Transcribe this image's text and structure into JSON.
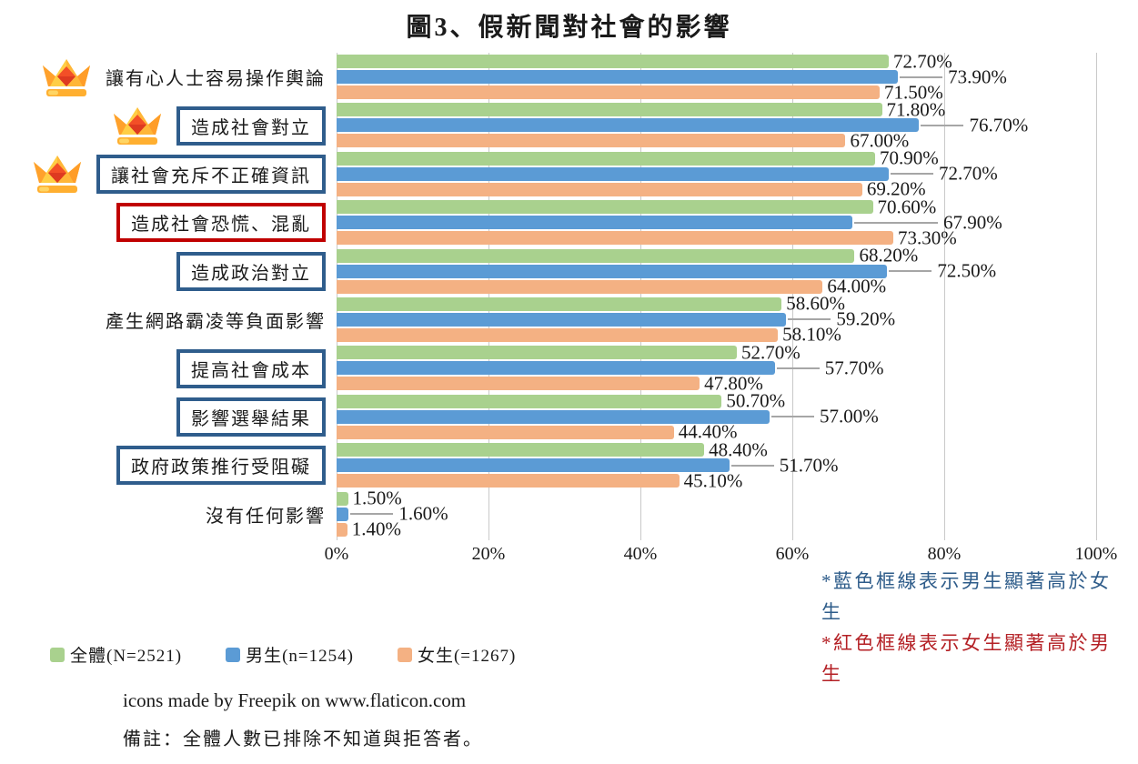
{
  "title": "圖3、假新聞對社會的影響",
  "chart_data": {
    "type": "bar",
    "orientation": "horizontal",
    "title": "圖3、假新聞對社會的影響",
    "xlim": [
      0,
      100
    ],
    "x_ticks": [
      "0%",
      "20%",
      "40%",
      "60%",
      "80%",
      "100%"
    ],
    "grid": true,
    "legend_position": "bottom-left",
    "categories": [
      {
        "label": "讓有心人士容易操作輿論",
        "crown": true,
        "box": "none"
      },
      {
        "label": "造成社會對立",
        "crown": true,
        "box": "blue"
      },
      {
        "label": "讓社會充斥不正確資訊",
        "crown": true,
        "box": "blue"
      },
      {
        "label": "造成社會恐慌、混亂",
        "crown": false,
        "box": "red"
      },
      {
        "label": "造成政治對立",
        "crown": false,
        "box": "blue"
      },
      {
        "label": "產生網路霸凌等負面影響",
        "crown": false,
        "box": "none"
      },
      {
        "label": "提高社會成本",
        "crown": false,
        "box": "blue"
      },
      {
        "label": "影響選舉結果",
        "crown": false,
        "box": "blue"
      },
      {
        "label": "政府政策推行受阻礙",
        "crown": false,
        "box": "blue"
      },
      {
        "label": "沒有任何影響",
        "crown": false,
        "box": "none"
      }
    ],
    "series": [
      {
        "name": "全體(N=2521)",
        "color": "#A9D18E",
        "values": [
          72.7,
          71.8,
          70.9,
          70.6,
          68.2,
          58.6,
          52.7,
          50.7,
          48.4,
          1.5
        ],
        "labels": [
          "72.70%",
          "71.80%",
          "70.90%",
          "70.60%",
          "68.20%",
          "58.60%",
          "52.70%",
          "50.70%",
          "48.40%",
          "1.50%"
        ]
      },
      {
        "name": "男生(n=1254)",
        "color": "#5B9BD5",
        "values": [
          73.9,
          76.7,
          72.7,
          67.9,
          72.5,
          59.2,
          57.7,
          57.0,
          51.7,
          1.6
        ],
        "labels": [
          "73.90%",
          "76.70%",
          "72.70%",
          "67.90%",
          "72.50%",
          "59.20%",
          "57.70%",
          "57.00%",
          "51.70%",
          "1.60%"
        ]
      },
      {
        "name": "女生(=1267)",
        "color": "#F4B183",
        "values": [
          71.5,
          67.0,
          69.2,
          73.3,
          64.0,
          58.1,
          47.8,
          44.4,
          45.1,
          1.4
        ],
        "labels": [
          "71.50%",
          "67.00%",
          "69.20%",
          "73.30%",
          "64.00%",
          "58.10%",
          "47.80%",
          "44.40%",
          "45.10%",
          "1.40%"
        ]
      }
    ]
  },
  "legend": {
    "items": [
      {
        "label": "全體(N=2521)",
        "color": "#A9D18E"
      },
      {
        "label": "男生(n=1254)",
        "color": "#5B9BD5"
      },
      {
        "label": "女生(=1267)",
        "color": "#F4B183"
      }
    ]
  },
  "notes": {
    "blue": "*藍色框線表示男生顯著高於女生",
    "red": "*紅色框線表示女生顯著高於男生"
  },
  "footer": {
    "credit": "icons made by Freepik on www.flaticon.com",
    "note": "備註：全體人數已排除不知道與拒答者。"
  },
  "colors": {
    "total": "#A9D18E",
    "male": "#5B9BD5",
    "female": "#F4B183",
    "box_blue": "#2F5D8C",
    "box_red": "#C00000",
    "note_blue": "#2E5C8A",
    "note_red": "#B42025",
    "grid": "#C9C9C9",
    "leader": "#A6A6A6",
    "crown_gold": "#FFCE45",
    "crown_gem": "#F34F27"
  }
}
